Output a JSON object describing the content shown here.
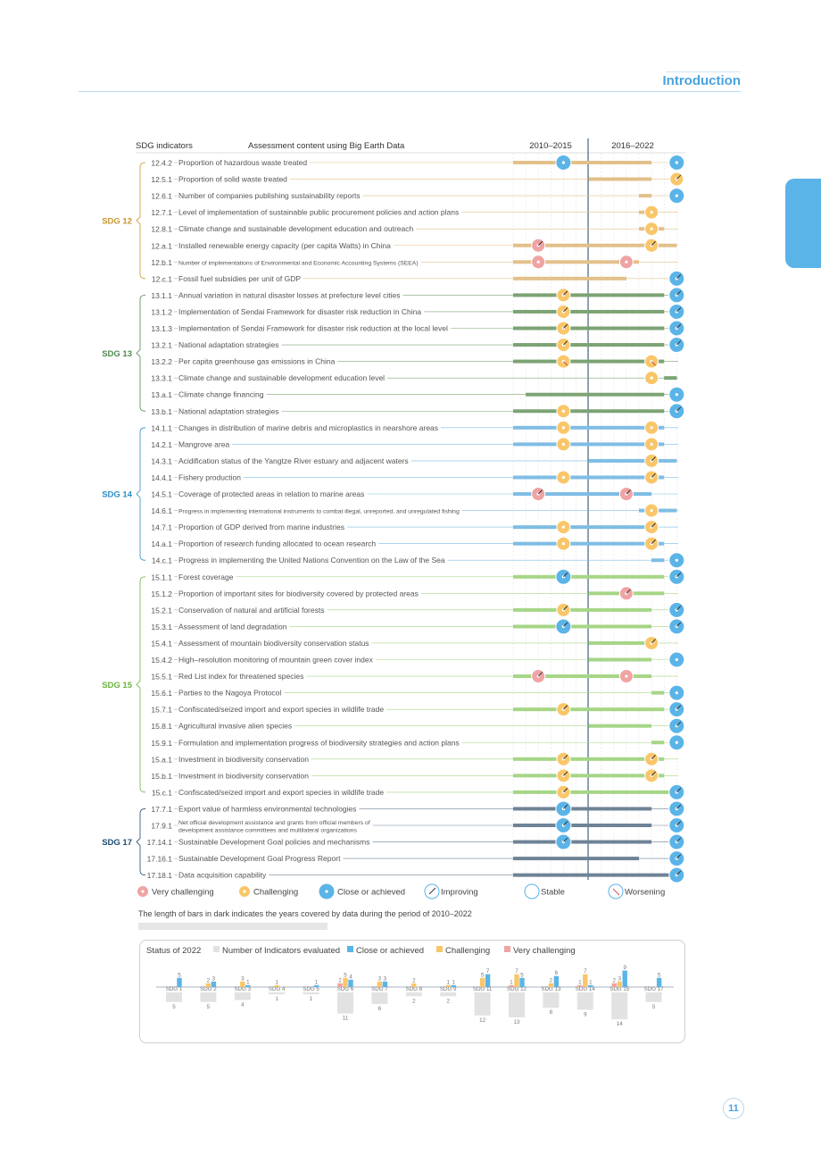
{
  "header": {
    "title": "Introduction"
  },
  "page_number": "11",
  "table": {
    "col_indicators": "SDG indicators",
    "col_content": "Assessment content using Big Earth Data",
    "col_period1": "2010–2015",
    "col_period2": "2016–2022"
  },
  "colors": {
    "SDG 12": "#c8962e",
    "SDG 13": "#4f8a4e",
    "SDG 14": "#2c8dc7",
    "SDG 15": "#6ab33d",
    "SDG 17": "#1f4a6e",
    "bar_12": "#e3c08a",
    "bar_13": "#7da374",
    "bar_14": "#7fbde4",
    "bar_15": "#a6d686",
    "bar_17": "#6f8396",
    "very_challenging": "#f0a3a3",
    "challenging": "#f9c66a",
    "close": "#5bb4e8"
  },
  "groups": [
    {
      "sdg": "SDG 12",
      "key": "12",
      "rows": [
        {
          "code": "12.4.2",
          "label": "Proportion of hazardous waste treated",
          "bar": [
            2010,
            2021
          ],
          "m2015": [
            "close",
            "none"
          ],
          "m2022": [
            "close",
            "none"
          ]
        },
        {
          "code": "12.5.1",
          "label": "Proportion of solid waste treated",
          "bar": [
            2016,
            2021
          ],
          "m2015": null,
          "m2022": [
            "challenging",
            "up"
          ]
        },
        {
          "code": "12.6.1",
          "label": "Number of companies publishing sustainability reports",
          "bar": [
            2020,
            2021
          ],
          "m2015": null,
          "m2022": [
            "close",
            "none"
          ]
        },
        {
          "code": "12.7.1",
          "label": "Level of implementation of sustainable public procurement policies and action plans",
          "bar": [
            2020,
            2021
          ],
          "m2015": null,
          "m2022": [
            "challenging",
            "none"
          ],
          "m2022x": 2021
        },
        {
          "code": "12.8.1",
          "label": "Climate change and sustainable development education and outreach",
          "bar": [
            2020,
            2022
          ],
          "m2015": null,
          "m2022": [
            "challenging",
            "none"
          ],
          "m2022x": 2021
        },
        {
          "code": "12.a.1",
          "label": "Installed renewable energy capacity (per capita Watts) in China",
          "bar": [
            2010,
            2023
          ],
          "m2015": [
            "very_challenging",
            "up"
          ],
          "m2015x": 2012,
          "m2022": [
            "challenging",
            "up"
          ],
          "m2022x": 2021
        },
        {
          "code": "12.b.1",
          "label": "Number of implementations of Environmental and Economic Accounting Systems (SEEA)",
          "small": true,
          "bar": [
            2010,
            2020
          ],
          "m2015": [
            "very_challenging",
            "none"
          ],
          "m2015x": 2012,
          "m2022": [
            "very_challenging",
            "none"
          ],
          "m2022x": 2019
        },
        {
          "code": "12.c.1",
          "label": "Fossil fuel subsidies per unit of GDP",
          "bar": [
            2010,
            2019
          ],
          "m2015": null,
          "m2022": [
            "close",
            "up"
          ]
        }
      ]
    },
    {
      "sdg": "SDG 13",
      "key": "13",
      "rows": [
        {
          "code": "13.1.1",
          "label": "Annual variation in natural disaster losses at prefecture level cities",
          "bar": [
            2010,
            2022
          ],
          "m2015": [
            "challenging",
            "up"
          ],
          "m2022": [
            "close",
            "up"
          ]
        },
        {
          "code": "13.1.2",
          "label": "Implementation of Sendai Framework for disaster risk reduction in China",
          "bar": [
            2010,
            2022
          ],
          "m2015": [
            "challenging",
            "up"
          ],
          "m2022": [
            "close",
            "up"
          ]
        },
        {
          "code": "13.1.3",
          "label": "Implementation of Sendai Framework for disaster risk reduction at the local level",
          "bar": [
            2010,
            2022
          ],
          "m2015": [
            "challenging",
            "up"
          ],
          "m2022": [
            "close",
            "up"
          ]
        },
        {
          "code": "13.2.1",
          "label": "National adaptation strategies",
          "bar": [
            2010,
            2022
          ],
          "m2015": [
            "challenging",
            "up"
          ],
          "m2022": [
            "close",
            "up"
          ]
        },
        {
          "code": "13.2.2",
          "label": "Per capita greenhouse gas emissions in China",
          "bar": [
            2010,
            2022
          ],
          "m2015": [
            "challenging",
            "down"
          ],
          "m2022": [
            "challenging",
            "down"
          ],
          "m2022x": 2021
        },
        {
          "code": "13.3.1",
          "label": "Climate change and sustainable development education level",
          "bar": [
            2022,
            2023
          ],
          "m2015": null,
          "m2022": [
            "challenging",
            "none"
          ],
          "m2022x": 2021
        },
        {
          "code": "13.a.1",
          "label": "Climate change financing",
          "bar": [
            2011,
            2022
          ],
          "m2015": null,
          "m2022": [
            "close",
            "none"
          ]
        },
        {
          "code": "13.b.1",
          "label": "National adaptation strategies",
          "bar": [
            2010,
            2022
          ],
          "m2015": [
            "challenging",
            "none"
          ],
          "m2022": [
            "close",
            "up"
          ]
        }
      ]
    },
    {
      "sdg": "SDG 14",
      "key": "14",
      "rows": [
        {
          "code": "14.1.1",
          "label": "Changes in distribution of marine debris and microplastics in nearshore areas",
          "bar": [
            2010,
            2022
          ],
          "m2015": [
            "challenging",
            "none"
          ],
          "m2022": [
            "challenging",
            "none"
          ],
          "m2022x": 2021
        },
        {
          "code": "14.2.1",
          "label": "Mangrove area",
          "bar": [
            2010,
            2022
          ],
          "m2015": [
            "challenging",
            "none"
          ],
          "m2022": [
            "challenging",
            "none"
          ],
          "m2022x": 2021
        },
        {
          "code": "14.3.1",
          "label": "Acidification status of the Yangtze River estuary and adjacent waters",
          "bar": [
            2016,
            2023
          ],
          "m2015": null,
          "m2022": [
            "challenging",
            "up"
          ],
          "m2022x": 2021
        },
        {
          "code": "14.4.1",
          "label": "Fishery production",
          "bar": [
            2010,
            2022
          ],
          "m2015": [
            "challenging",
            "none"
          ],
          "m2022": [
            "challenging",
            "up"
          ],
          "m2022x": 2021
        },
        {
          "code": "14.5.1",
          "label": "Coverage of protected areas in relation to marine areas",
          "bar": [
            2010,
            2021
          ],
          "m2015": [
            "very_challenging",
            "up"
          ],
          "m2015x": 2012,
          "m2022": [
            "very_challenging",
            "up"
          ],
          "m2022x": 2019
        },
        {
          "code": "14.6.1",
          "label": "Progress in implementing international instruments to combat illegal, unreported, and unregulated fishing",
          "small": true,
          "bar": [
            2020,
            2023
          ],
          "m2015": null,
          "m2022": [
            "challenging",
            "none"
          ],
          "m2022x": 2021
        },
        {
          "code": "14.7.1",
          "label": "Proportion of GDP derived from marine industries",
          "bar": [
            2010,
            2021
          ],
          "m2015": [
            "challenging",
            "none"
          ],
          "m2022": [
            "challenging",
            "up"
          ],
          "m2022x": 2021
        },
        {
          "code": "14.a.1",
          "label": "Proportion of research funding allocated to ocean research",
          "bar": [
            2010,
            2022
          ],
          "m2015": [
            "challenging",
            "none"
          ],
          "m2022": [
            "challenging",
            "up"
          ],
          "m2022x": 2021
        },
        {
          "code": "14.c.1",
          "label": "Progress in implementing the United Nations Convention on the Law of the Sea",
          "bar": [
            2021,
            2022
          ],
          "m2015": null,
          "m2022": [
            "close",
            "none"
          ]
        }
      ]
    },
    {
      "sdg": "SDG 15",
      "key": "15",
      "rows": [
        {
          "code": "15.1.1",
          "label": "Forest coverage",
          "bar": [
            2010,
            2022
          ],
          "m2015": [
            "close",
            "up"
          ],
          "m2022": [
            "close",
            "up"
          ]
        },
        {
          "code": "15.1.2",
          "label": "Proportion of important sites for biodiversity covered by protected areas",
          "bar": [
            2016,
            2022
          ],
          "m2015": null,
          "m2022": [
            "very_challenging",
            "up"
          ],
          "m2022x": 2019
        },
        {
          "code": "15.2.1",
          "label": "Conservation of natural and artificial forests",
          "bar": [
            2010,
            2021
          ],
          "m2015": [
            "challenging",
            "up"
          ],
          "m2022": [
            "close",
            "up"
          ]
        },
        {
          "code": "15.3.1",
          "label": "Assessment of land degradation",
          "bar": [
            2010,
            2021
          ],
          "m2015": [
            "close",
            "up"
          ],
          "m2022": [
            "close",
            "up"
          ]
        },
        {
          "code": "15.4.1",
          "label": "Assessment of mountain biodiversity conservation status",
          "bar": [
            2016,
            2021
          ],
          "m2015": null,
          "m2022": [
            "challenging",
            "up"
          ],
          "m2022x": 2021
        },
        {
          "code": "15.4.2",
          "label": "High–resolution monitoring of  mountain green cover index",
          "bar": [
            2016,
            2021
          ],
          "m2015": null,
          "m2022": [
            "close",
            "none"
          ]
        },
        {
          "code": "15.5.1",
          "label": "Red List index for threatened species",
          "bar": [
            2010,
            2021
          ],
          "m2015": [
            "very_challenging",
            "up"
          ],
          "m2015x": 2012,
          "m2022": [
            "very_challenging",
            "none"
          ],
          "m2022x": 2019
        },
        {
          "code": "15.6.1",
          "label": "Parties to the Nagoya Protocol",
          "bar": [
            2021,
            2022
          ],
          "m2015": null,
          "m2022": [
            "close",
            "none"
          ]
        },
        {
          "code": "15.7.1",
          "label": "Confiscated/seized import and export species in wildlife trade",
          "bar": [
            2010,
            2022
          ],
          "m2015": [
            "challenging",
            "up"
          ],
          "m2022": [
            "close",
            "up"
          ]
        },
        {
          "code": "15.8.1",
          "label": "Agricultural invasive alien species",
          "bar": [
            2016,
            2021
          ],
          "m2015": null,
          "m2022": [
            "close",
            "up"
          ]
        },
        {
          "code": "15.9.1",
          "label": "Formulation and implementation progress of biodiversity strategies and action plans",
          "bar": [
            2021,
            2022
          ],
          "m2015": null,
          "m2022": [
            "close",
            "none"
          ]
        },
        {
          "code": "15.a.1",
          "label": "Investment in biodiversity conservation",
          "bar": [
            2010,
            2022
          ],
          "m2015": [
            "challenging",
            "up"
          ],
          "m2022": [
            "challenging",
            "up"
          ],
          "m2022x": 2021
        },
        {
          "code": "15.b.1",
          "label": "Investment in biodiversity conservation",
          "bar": [
            2010,
            2022
          ],
          "m2015": [
            "challenging",
            "up"
          ],
          "m2022": [
            "challenging",
            "up"
          ],
          "m2022x": 2021
        },
        {
          "code": "15.c.1",
          "label": "Confiscated/seized import and export species in wildlife trade",
          "bar": [
            2010,
            2023
          ],
          "m2015": [
            "challenging",
            "up"
          ],
          "m2022": [
            "close",
            "up"
          ]
        }
      ]
    },
    {
      "sdg": "SDG 17",
      "key": "17",
      "rows": [
        {
          "code": "17.7.1",
          "label": "Export value of harmless environmental technologies",
          "bar": [
            2010,
            2021
          ],
          "m2015": [
            "close",
            "up"
          ],
          "m2022": [
            "close",
            "up"
          ]
        },
        {
          "code": "17.9.1",
          "label": "Net official development assistance and grants from official members of",
          "label2": "development assistance committees and multilateral organizations",
          "small": true,
          "bar": [
            2010,
            2021
          ],
          "m2015": [
            "close",
            "up"
          ],
          "m2022": [
            "close",
            "up"
          ]
        },
        {
          "code": "17.14.1",
          "label": "Sustainable Development Goal policies and mechanisms",
          "bar": [
            2010,
            2021
          ],
          "m2015": [
            "close",
            "up"
          ],
          "m2022": [
            "close",
            "up"
          ]
        },
        {
          "code": "17.16.1",
          "label": "Sustainable Development Goal Progress Report",
          "bar": [
            2010,
            2020
          ],
          "m2015": null,
          "m2022": [
            "close",
            "up"
          ]
        },
        {
          "code": "17.18.1",
          "label": "Data acquisition capability",
          "bar": [
            2010,
            2023
          ],
          "m2015": null,
          "m2022": [
            "close",
            "up"
          ]
        }
      ]
    }
  ],
  "legend": [
    {
      "key": "very_challenging",
      "label": "Very challenging"
    },
    {
      "key": "challenging",
      "label": "Challenging"
    },
    {
      "key": "close",
      "label": "Close or achieved"
    },
    {
      "key": "improving",
      "label": "Improving"
    },
    {
      "key": "stable",
      "label": "Stable"
    },
    {
      "key": "worsening",
      "label": "Worsening"
    }
  ],
  "note": "The length of bars in dark indicates the years covered by data during the period of 2010–2022",
  "chart_data": {
    "type": "bar",
    "title": "Status of 2022",
    "legend": [
      "Number of Indicators evaluated",
      "Close or achieved",
      "Challenging",
      "Very challenging"
    ],
    "categories": [
      "SDG 1",
      "SDG 2",
      "SDG 3",
      "SDG 4",
      "SDG 5",
      "SDG 6",
      "SDG 7",
      "SDG 8",
      "SDG 9",
      "SDG 11",
      "SDG 12",
      "SDG 13",
      "SDG 14",
      "SDG 15",
      "SDG 17"
    ],
    "series": [
      {
        "name": "Number of Indicators evaluated",
        "values": [
          5,
          5,
          4,
          1,
          1,
          11,
          6,
          2,
          2,
          12,
          13,
          8,
          9,
          14,
          5
        ]
      },
      {
        "name": "Close or achieved",
        "values": [
          5,
          3,
          1,
          0,
          1,
          4,
          3,
          0,
          1,
          7,
          5,
          6,
          1,
          9,
          5
        ]
      },
      {
        "name": "Challenging",
        "values": [
          0,
          2,
          3,
          1,
          0,
          5,
          3,
          2,
          1,
          5,
          7,
          2,
          7,
          3,
          0
        ]
      },
      {
        "name": "Very challenging",
        "values": [
          0,
          0,
          0,
          0,
          0,
          2,
          0,
          0,
          0,
          0,
          1,
          0,
          1,
          2,
          0
        ]
      }
    ]
  }
}
